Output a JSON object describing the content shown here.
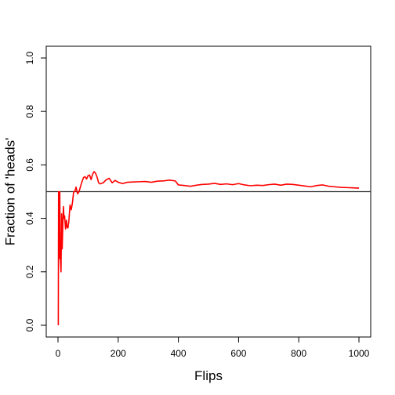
{
  "chart_data": {
    "type": "line",
    "title": "",
    "xlabel": "Flips",
    "ylabel": "Fraction of 'heads'",
    "xlim": [
      0,
      1000
    ],
    "ylim": [
      0,
      1
    ],
    "x_ticks": [
      0,
      200,
      400,
      600,
      800,
      1000
    ],
    "y_ticks": [
      0.0,
      0.2,
      0.4,
      0.6,
      0.8,
      1.0
    ],
    "x_tick_labels": [
      "0",
      "200",
      "400",
      "600",
      "800",
      "1000"
    ],
    "y_tick_labels": [
      "0.0",
      "0.2",
      "0.4",
      "0.6",
      "0.8",
      "1.0"
    ],
    "reference_line": {
      "y": 0.5,
      "color": "#333333"
    },
    "grid": false,
    "series": [
      {
        "color": "#ff0000",
        "x": [
          1,
          2,
          3,
          4,
          5,
          6,
          7,
          8,
          10,
          12,
          14,
          16,
          18,
          20,
          22,
          25,
          28,
          30,
          33,
          36,
          40,
          44,
          48,
          52,
          56,
          60,
          65,
          70,
          75,
          80,
          85,
          90,
          95,
          100,
          105,
          110,
          115,
          120,
          125,
          130,
          135,
          140,
          150,
          160,
          170,
          180,
          190,
          200,
          215,
          230,
          250,
          270,
          290,
          310,
          330,
          350,
          370,
          390,
          400,
          420,
          440,
          460,
          480,
          500,
          520,
          540,
          560,
          580,
          600,
          620,
          640,
          660,
          680,
          700,
          720,
          740,
          760,
          780,
          800,
          820,
          840,
          860,
          880,
          900,
          920,
          940,
          960,
          980,
          1000
        ],
        "y": [
          0.0,
          0.5,
          0.333,
          0.25,
          0.4,
          0.5,
          0.286,
          0.25,
          0.2,
          0.417,
          0.286,
          0.375,
          0.444,
          0.4,
          0.409,
          0.36,
          0.393,
          0.367,
          0.364,
          0.389,
          0.45,
          0.432,
          0.458,
          0.5,
          0.5,
          0.517,
          0.492,
          0.5,
          0.52,
          0.538,
          0.553,
          0.556,
          0.547,
          0.56,
          0.562,
          0.545,
          0.565,
          0.575,
          0.568,
          0.554,
          0.533,
          0.529,
          0.533,
          0.544,
          0.55,
          0.533,
          0.542,
          0.535,
          0.53,
          0.535,
          0.536,
          0.537,
          0.538,
          0.535,
          0.539,
          0.54,
          0.543,
          0.54,
          0.525,
          0.523,
          0.52,
          0.524,
          0.527,
          0.528,
          0.531,
          0.527,
          0.529,
          0.526,
          0.53,
          0.525,
          0.522,
          0.524,
          0.523,
          0.526,
          0.528,
          0.524,
          0.528,
          0.527,
          0.524,
          0.521,
          0.518,
          0.523,
          0.525,
          0.52,
          0.518,
          0.516,
          0.515,
          0.514,
          0.513
        ]
      }
    ]
  }
}
